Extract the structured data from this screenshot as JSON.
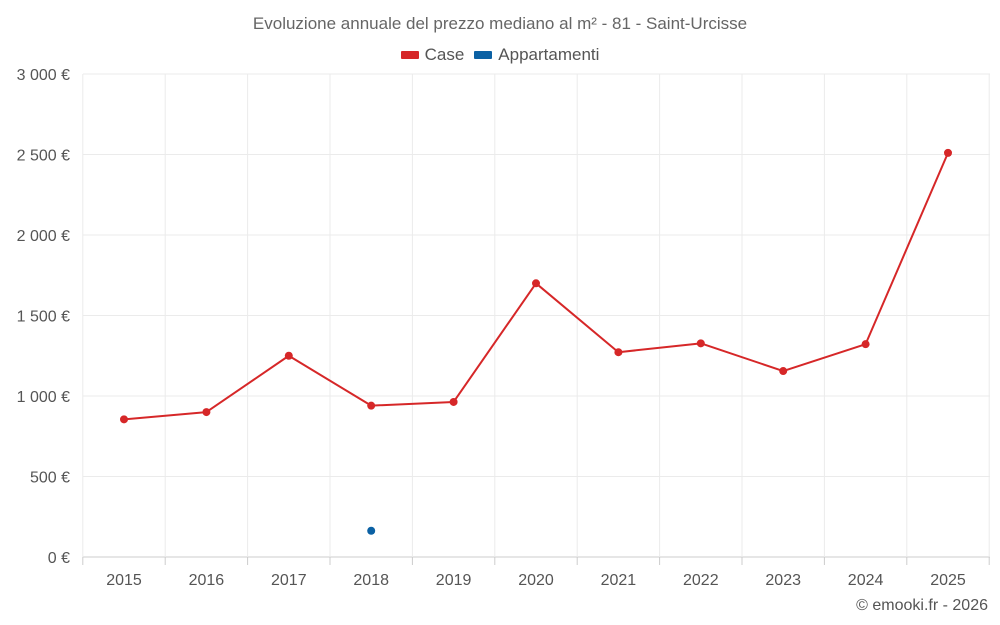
{
  "chart_data": {
    "type": "line",
    "title": "Evoluzione annuale del prezzo mediano al m² - 81 - Saint-Urcisse",
    "xlabel": "",
    "ylabel": "",
    "categories": [
      "2015",
      "2016",
      "2017",
      "2018",
      "2019",
      "2020",
      "2021",
      "2022",
      "2023",
      "2024",
      "2025"
    ],
    "ylim": [
      0,
      3000
    ],
    "yticks": [
      0,
      500,
      1000,
      1500,
      2000,
      2500,
      3000
    ],
    "ytick_labels": [
      "0 €",
      "500 €",
      "1 000 €",
      "1 500 €",
      "2 000 €",
      "2 500 €",
      "3 000 €"
    ],
    "grid": true,
    "legend_position": "top-center",
    "series": [
      {
        "name": "Case",
        "color": "#d62728",
        "values": [
          855,
          900,
          1250,
          940,
          963,
          1700,
          1272,
          1327,
          1155,
          1322,
          2510
        ]
      },
      {
        "name": "Appartamenti",
        "color": "#0b61a4",
        "values": [
          null,
          null,
          null,
          163,
          null,
          null,
          null,
          null,
          null,
          null,
          null
        ]
      }
    ]
  },
  "credit": "© emooki.fr - 2026"
}
